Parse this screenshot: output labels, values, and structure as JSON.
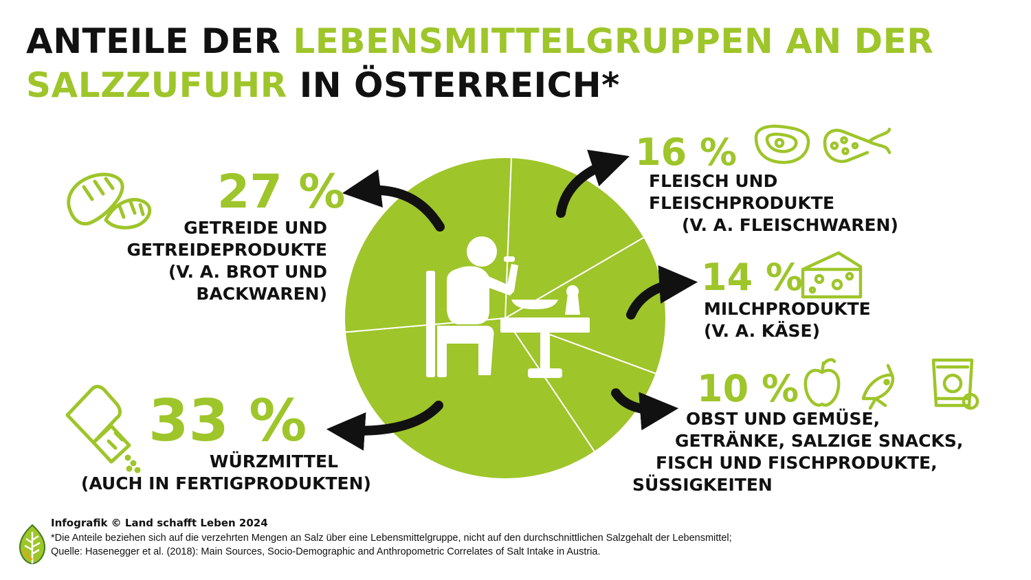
{
  "title": {
    "part1": "ANTEILE DER ",
    "part2": "LEBENSMITTELGRUPPEN AN DER",
    "part3": "SALZZUFUHR",
    "part4": " IN ÖSTERREICH*"
  },
  "colors": {
    "green": "#9ec52a",
    "black": "#111111",
    "white": "#ffffff"
  },
  "chart_data": {
    "type": "pie",
    "categories": [
      "Würzmittel",
      "Getreide und Getreideprodukte",
      "Fleisch und Fleischprodukte",
      "Milchprodukte",
      "Obst und Gemüse, Getränke, salzige Snacks, Fisch und Fischprodukte, Süßigkeiten"
    ],
    "values": [
      33,
      27,
      16,
      14,
      10
    ],
    "slices": [
      {
        "value": 33,
        "percent_label": "33 %",
        "label_lines": [
          "WÜRZMITTEL",
          "(AUCH IN FERTIGPRODUKTEN)"
        ],
        "icon": "salt-shaker-icon"
      },
      {
        "value": 27,
        "percent_label": "27 %",
        "label_lines": [
          "GETREIDE UND",
          "GETREIDEPRODUKTE",
          "(V. A. BROT UND",
          "BACKWAREN)"
        ],
        "icon": "bread-icon"
      },
      {
        "value": 16,
        "percent_label": "16 %",
        "label_lines": [
          "FLEISCH UND",
          "FLEISCHPRODUKTE",
          "(V. A. FLEISCHWAREN)"
        ],
        "icon": "meat-sausage-icon"
      },
      {
        "value": 14,
        "percent_label": "14 %",
        "label_lines": [
          "MILCHPRODUKTE",
          "(V. A. KÄSE)"
        ],
        "icon": "cheese-icon"
      },
      {
        "value": 10,
        "percent_label": "10 %",
        "label_lines": [
          "OBST UND GEMÜSE,",
          "GETRÄNKE, SALZIGE SNACKS,",
          "FISCH UND FISCHPRODUKTE,",
          "SÜSSIGKEITEN"
        ],
        "icon": "apple-fish-snack-icon"
      }
    ],
    "center_icon": "person-eating-icon"
  },
  "footer": {
    "credit": "Infografik © Land schafft Leben 2024",
    "note_lines": [
      "*Die Anteile beziehen sich auf die verzehrten Mengen an Salz über eine Lebensmittelgruppe, nicht auf den durchschnittlichen Salzgehalt der Lebensmittel;",
      "Quelle: Hasenegger et al. (2018): Main Sources, Socio-Demographic and Anthropometric Correlates of Salt Intake in Austria."
    ],
    "logo_icon": "leaf-logo-icon"
  }
}
